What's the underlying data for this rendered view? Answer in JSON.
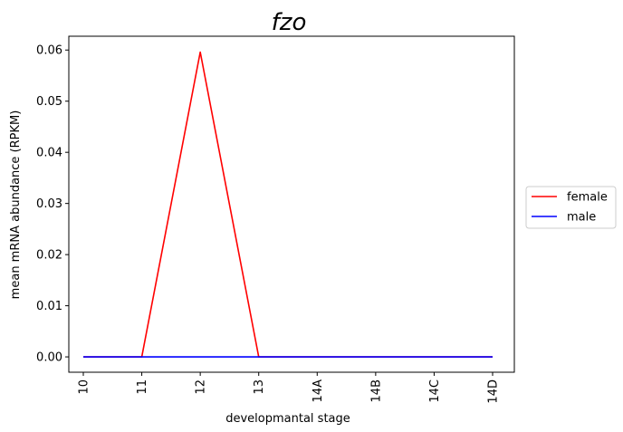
{
  "chart_data": {
    "type": "line",
    "title": "fzo",
    "xlabel": "developmantal stage",
    "ylabel": "mean mRNA abundance (RPKM)",
    "categories": [
      "10",
      "11",
      "12",
      "13",
      "14A",
      "14B",
      "14C",
      "14D"
    ],
    "ylim": [
      -0.003,
      0.0627
    ],
    "yticks": [
      0.0,
      0.01,
      0.02,
      0.03,
      0.04,
      0.05,
      0.06
    ],
    "ytick_labels": [
      "0.00",
      "0.01",
      "0.02",
      "0.03",
      "0.04",
      "0.05",
      "0.06"
    ],
    "grid": false,
    "legend_position": "right",
    "series": [
      {
        "name": "female",
        "color": "#ff0000",
        "values": [
          0.0,
          0.0,
          0.0596,
          0.0,
          0.0,
          0.0,
          0.0,
          0.0
        ]
      },
      {
        "name": "male",
        "color": "#0000ff",
        "values": [
          0.0,
          0.0,
          0.0,
          0.0,
          0.0,
          0.0,
          0.0,
          0.0
        ]
      }
    ]
  }
}
